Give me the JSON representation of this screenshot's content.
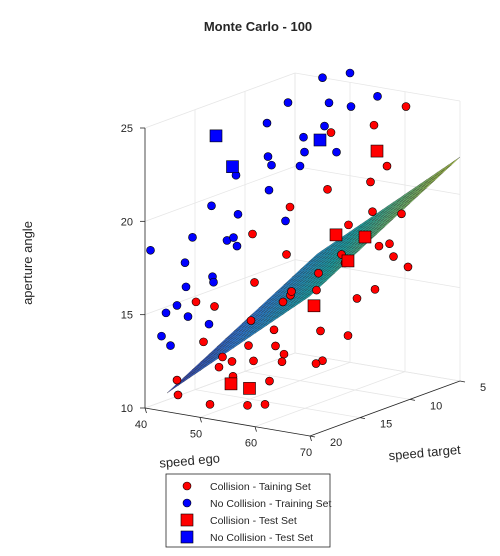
{
  "chart_data": {
    "type": "scatter",
    "title": "Monte Carlo - 100",
    "xlabel": "speed ego",
    "ylabel": "speed target",
    "zlabel": "aperture angle",
    "xlim": [
      40,
      70
    ],
    "ylim": [
      5,
      20
    ],
    "zlim": [
      10,
      25
    ],
    "x_ticks": [
      "40",
      "50",
      "60",
      "70"
    ],
    "y_ticks": [
      "5",
      "10",
      "15",
      "20"
    ],
    "z_ticks": [
      "10",
      "15",
      "20",
      "25"
    ],
    "grid": true,
    "legend_position": "bottom",
    "colors": {
      "collision": "#ff0000",
      "no_collision": "#0000ff",
      "surface_low": "#3e26a8",
      "surface_high": "#f9fb0e"
    },
    "surface": {
      "description_formula": "aperture = 6 + 0.25*ego - 0.3*target",
      "xlim": [
        44,
        70
      ],
      "ylim": [
        5,
        20
      ]
    },
    "series": [
      {
        "name": "Collision - Taining Set",
        "marker": "circle",
        "color": "#ff0000",
        "points": [
          [
            62,
            6,
            24.5
          ],
          [
            58,
            7,
            23.5
          ],
          [
            52,
            8,
            23
          ],
          [
            61,
            9,
            21
          ],
          [
            55,
            10,
            20.5
          ],
          [
            50,
            11,
            19.5
          ],
          [
            63,
            7,
            19
          ],
          [
            57,
            9,
            18.5
          ],
          [
            45,
            12,
            18
          ],
          [
            53,
            13,
            17.5
          ],
          [
            60,
            11,
            17
          ],
          [
            66,
            8,
            16.5
          ],
          [
            49,
            14,
            16
          ],
          [
            56,
            15,
            15.5
          ],
          [
            64,
            12,
            15.5
          ],
          [
            42,
            16,
            15
          ],
          [
            58,
            17,
            14.5
          ],
          [
            61,
            14,
            14
          ],
          [
            47,
            18,
            13.5
          ],
          [
            54,
            19,
            13
          ],
          [
            65,
            16,
            13
          ],
          [
            51,
            13,
            12.5
          ],
          [
            59,
            18,
            12
          ],
          [
            44,
            19,
            11.5
          ],
          [
            67,
            10,
            17.5
          ],
          [
            63,
            13,
            18
          ],
          [
            57,
            12,
            16.5
          ],
          [
            52,
            16,
            14.5
          ],
          [
            48,
            17,
            12
          ],
          [
            60,
            19,
            11
          ],
          [
            55,
            18,
            10.5
          ],
          [
            62,
            15,
            12.5
          ],
          [
            66,
            14,
            14
          ],
          [
            50,
            19,
            10.5
          ],
          [
            46,
            20,
            11
          ],
          [
            64,
            9,
            22
          ],
          [
            59,
            6,
            17
          ],
          [
            53,
            10,
            15
          ],
          [
            68,
            12,
            18.5
          ],
          [
            45,
            15,
            12
          ],
          [
            56,
            20,
            12.5
          ],
          [
            61,
            17,
            16.5
          ],
          [
            58,
            16,
            13
          ],
          [
            49,
            18,
            15.5
          ],
          [
            65,
            11,
            20
          ],
          [
            54,
            14,
            12
          ],
          [
            60,
            8,
            15
          ],
          [
            63,
            18,
            17
          ],
          [
            47,
            13,
            11.5
          ],
          [
            57,
            19,
            14
          ]
        ]
      },
      {
        "name": "No Collision - Training Set",
        "marker": "circle",
        "color": "#0000ff",
        "points": [
          [
            45,
            5,
            25
          ],
          [
            48,
            6,
            24
          ],
          [
            44,
            10,
            23.5
          ],
          [
            46,
            9,
            24.5
          ],
          [
            50,
            5,
            25.5
          ],
          [
            42,
            12,
            21
          ],
          [
            47,
            8,
            22.5
          ],
          [
            43,
            15,
            20
          ],
          [
            45,
            18,
            19
          ],
          [
            41,
            20,
            18.5
          ],
          [
            44,
            14,
            18
          ],
          [
            46,
            11,
            22
          ],
          [
            49,
            7,
            23
          ],
          [
            42,
            17,
            16
          ],
          [
            44,
            19,
            15.5
          ],
          [
            43,
            20,
            14
          ],
          [
            41,
            18,
            13
          ],
          [
            45,
            16,
            16.5
          ],
          [
            48,
            12,
            20.5
          ],
          [
            47,
            15,
            18.5
          ],
          [
            50,
            10,
            21.5
          ],
          [
            46,
            19,
            15
          ],
          [
            44,
            13,
            17.5
          ],
          [
            52,
            6,
            24
          ],
          [
            49,
            9,
            22
          ],
          [
            40,
            16,
            17
          ],
          [
            48,
            18,
            14.5
          ],
          [
            51,
            12,
            19
          ],
          [
            43,
            9,
            21
          ],
          [
            46,
            14,
            19.5
          ],
          [
            55,
            5,
            24.5
          ],
          [
            47,
            17,
            16.5
          ],
          [
            53,
            8,
            22
          ],
          [
            42,
            19,
            15
          ]
        ]
      },
      {
        "name": "Collision - Test Set",
        "marker": "square",
        "color": "#ff0000",
        "points": [
          [
            64,
            10,
            23
          ],
          [
            60,
            9,
            18
          ],
          [
            62,
            13,
            19
          ],
          [
            58,
            13,
            15
          ],
          [
            66,
            14,
            18
          ],
          [
            52,
            18,
            11.5
          ],
          [
            59,
            20,
            12
          ]
        ]
      },
      {
        "name": "No Collision - Test Set",
        "marker": "square",
        "color": "#0000ff",
        "points": [
          [
            42,
            14,
            23.5
          ],
          [
            45,
            14,
            22
          ],
          [
            50,
            8,
            22.5
          ]
        ]
      }
    ]
  },
  "legend": {
    "entries": [
      "Collision - Taining Set",
      "No Collision - Training Set",
      "Collision - Test Set",
      "No Collision - Test Set"
    ]
  }
}
